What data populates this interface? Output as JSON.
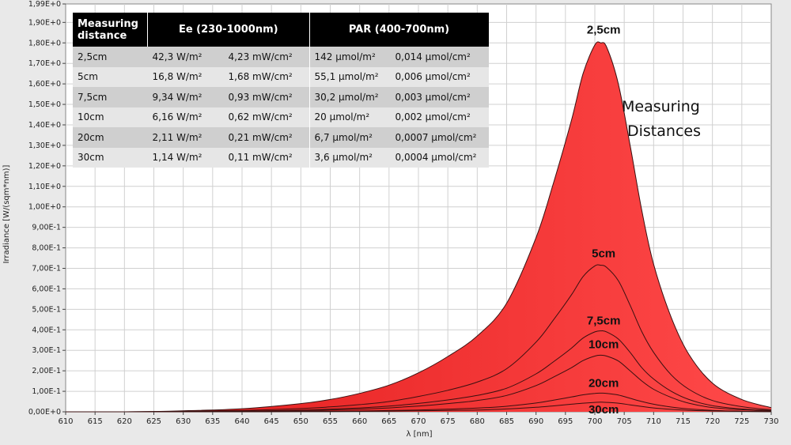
{
  "chart_data": {
    "type": "area",
    "xlabel": "λ [nm]",
    "ylabel": "Irradiance [W/(sqm*nm)]",
    "xlim": [
      610,
      730
    ],
    "ylim": [
      0,
      1.99
    ],
    "x_ticks": [
      "610",
      "615",
      "620",
      "625",
      "630",
      "635",
      "640",
      "645",
      "650",
      "655",
      "660",
      "665",
      "670",
      "675",
      "680",
      "685",
      "690",
      "695",
      "700",
      "705",
      "710",
      "715",
      "720",
      "725",
      "730"
    ],
    "y_ticks": [
      "0,00E+0",
      "1,00E-1",
      "2,00E-1",
      "3,00E-1",
      "4,00E-1",
      "5,00E-1",
      "6,00E-1",
      "7,00E-1",
      "8,00E-1",
      "9,00E-1",
      "1,00E+0",
      "1,10E+0",
      "1,20E+0",
      "1,30E+0",
      "1,40E+0",
      "1,50E+0",
      "1,60E+0",
      "1,70E+0",
      "1,80E+0",
      "1,90E+0",
      "1,99E+0"
    ],
    "grid": true,
    "x": [
      610,
      620,
      630,
      640,
      650,
      655,
      660,
      665,
      670,
      675,
      680,
      685,
      690,
      693,
      696,
      698,
      700,
      701,
      702,
      704,
      706,
      708,
      710,
      713,
      716,
      720,
      725,
      730
    ],
    "series": [
      {
        "name": "2,5cm",
        "values": [
          0,
          0,
          0.005,
          0.015,
          0.04,
          0.06,
          0.09,
          0.13,
          0.19,
          0.27,
          0.37,
          0.53,
          0.85,
          1.12,
          1.42,
          1.65,
          1.79,
          1.8,
          1.78,
          1.6,
          1.3,
          0.98,
          0.72,
          0.46,
          0.28,
          0.14,
          0.06,
          0.02
        ]
      },
      {
        "name": "5cm",
        "values": [
          0,
          0,
          0.002,
          0.006,
          0.016,
          0.024,
          0.035,
          0.05,
          0.075,
          0.105,
          0.145,
          0.21,
          0.34,
          0.45,
          0.57,
          0.66,
          0.712,
          0.715,
          0.705,
          0.64,
          0.52,
          0.39,
          0.29,
          0.18,
          0.11,
          0.055,
          0.025,
          0.01
        ]
      },
      {
        "name": "7,5cm",
        "values": [
          0,
          0,
          0.001,
          0.003,
          0.008,
          0.013,
          0.019,
          0.028,
          0.041,
          0.058,
          0.08,
          0.115,
          0.185,
          0.245,
          0.31,
          0.36,
          0.39,
          0.395,
          0.39,
          0.355,
          0.29,
          0.215,
          0.16,
          0.1,
          0.06,
          0.03,
          0.014,
          0.006
        ]
      },
      {
        "name": "10cm",
        "values": [
          0,
          0,
          0.001,
          0.002,
          0.006,
          0.009,
          0.013,
          0.019,
          0.028,
          0.04,
          0.055,
          0.08,
          0.128,
          0.17,
          0.215,
          0.25,
          0.272,
          0.276,
          0.272,
          0.248,
          0.2,
          0.15,
          0.11,
          0.07,
          0.042,
          0.021,
          0.01,
          0.004
        ]
      },
      {
        "name": "20cm",
        "values": [
          0,
          0,
          0,
          0.001,
          0.002,
          0.003,
          0.004,
          0.006,
          0.009,
          0.013,
          0.018,
          0.027,
          0.043,
          0.057,
          0.072,
          0.083,
          0.09,
          0.091,
          0.09,
          0.082,
          0.066,
          0.05,
          0.037,
          0.023,
          0.014,
          0.007,
          0.003,
          0.001
        ]
      },
      {
        "name": "30cm",
        "values": [
          0,
          0,
          0,
          0,
          0.001,
          0.001,
          0.002,
          0.003,
          0.005,
          0.007,
          0.009,
          0.014,
          0.022,
          0.029,
          0.037,
          0.042,
          0.046,
          0.047,
          0.046,
          0.042,
          0.034,
          0.026,
          0.019,
          0.012,
          0.007,
          0.004,
          0.002,
          0.001
        ]
      }
    ],
    "curve_labels": [
      "2,5cm",
      "5cm",
      "7,5cm",
      "10cm",
      "20cm",
      "30cm"
    ],
    "annotation": [
      "Measuring",
      "Distances"
    ],
    "colors": {
      "fill_light": "#ff4a4a",
      "fill_dark": "#e01818",
      "line": "#3a1010",
      "plot_bg": "#ffffff",
      "frame_bg": "#e9e9e9",
      "grid": "#d0d0d0"
    }
  },
  "table": {
    "headers": [
      "Measuring distance",
      "Ee  (230-1000nm)",
      "PAR (400-700nm)"
    ],
    "rows": [
      [
        "2,5cm",
        "42,3 W/m²",
        "4,23 mW/cm²",
        "142 µmol/m²",
        "0,014 µmol/cm²"
      ],
      [
        "5cm",
        "16,8 W/m²",
        "1,68 mW/cm²",
        "55,1 µmol/m²",
        "0,006 µmol/cm²"
      ],
      [
        "7,5cm",
        "9,34 W/m²",
        "0,93 mW/cm²",
        "30,2 µmol/m²",
        "0,003 µmol/cm²"
      ],
      [
        "10cm",
        "6,16 W/m²",
        "0,62 mW/cm²",
        "20 µmol/m²",
        "0,002 µmol/cm²"
      ],
      [
        "20cm",
        "2,11 W/m²",
        "0,21 mW/cm²",
        "6,7 µmol/m²",
        "0,0007 µmol/cm²"
      ],
      [
        "30cm",
        "1,14 W/m²",
        "0,11 mW/cm²",
        "3,6 µmol/m²",
        "0,0004 µmol/cm²"
      ]
    ]
  }
}
